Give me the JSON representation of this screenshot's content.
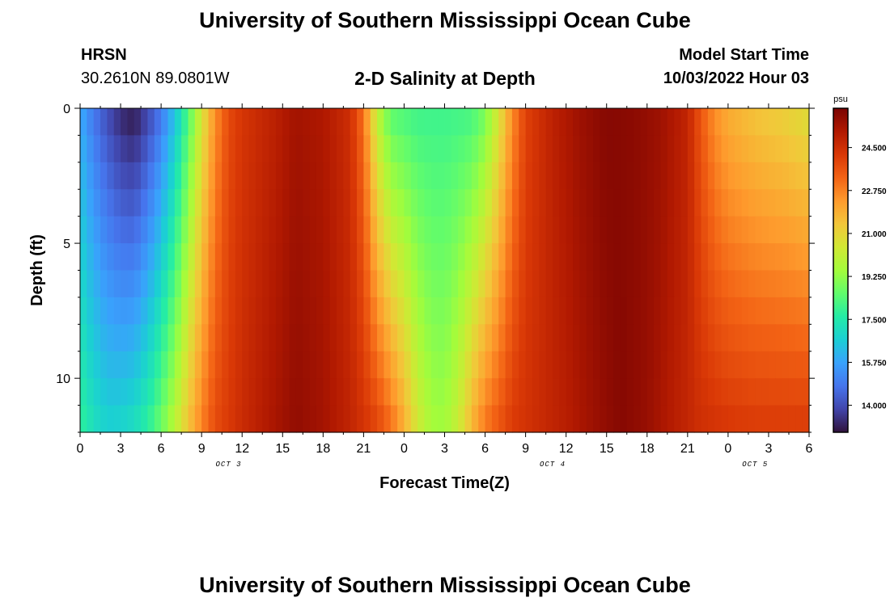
{
  "header": {
    "title": "University of Southern Mississippi Ocean Cube",
    "station": "HRSN",
    "coords": "30.2610N  89.0801W",
    "plot_title": "2-D Salinity at Depth",
    "start_label": "Model Start Time",
    "start_value": "10/03/2022 Hour 03"
  },
  "footer": {
    "title": "University of Southern Mississippi Ocean Cube"
  },
  "colors": {
    "colormap": [
      "#30123b",
      "#4145ab",
      "#4675ed",
      "#39a2fc",
      "#1bcfd4",
      "#24eca6",
      "#61fc6c",
      "#a4fc3b",
      "#d1e834",
      "#f3c63a",
      "#fe9b2d",
      "#f36315",
      "#d93806",
      "#b11901",
      "#7a0403"
    ]
  },
  "chart_data": {
    "type": "heatmap",
    "title": "2-D Salinity at Depth",
    "xlabel": "Forecast Time(Z)",
    "ylabel": "Depth (ft)",
    "x_ticks": [
      "0",
      "3",
      "6",
      "9",
      "12",
      "15",
      "18",
      "21",
      "0",
      "3",
      "6",
      "9",
      "12",
      "15",
      "18",
      "21",
      "0",
      "3",
      "6"
    ],
    "day_labels": [
      {
        "label": "OCT 3",
        "hour": 11
      },
      {
        "label": "OCT 4",
        "hour": 35
      },
      {
        "label": "OCT 5",
        "hour": 50
      }
    ],
    "x_range_hours": [
      0,
      54
    ],
    "y_ticks": [
      0,
      5,
      10
    ],
    "y_range_ft": [
      0,
      12
    ],
    "colorbar": {
      "unit": "psu",
      "ticks": [
        14.0,
        15.75,
        17.5,
        19.25,
        21.0,
        22.75,
        24.5
      ],
      "tick_labels": [
        "14.000",
        "15.750",
        "17.500",
        "19.250",
        "21.000",
        "22.750",
        "24.500"
      ],
      "range": [
        12.9,
        26.1
      ]
    },
    "surface_salinity_psu": [
      [
        0,
        15.9
      ],
      [
        1,
        14.8
      ],
      [
        2,
        14.0
      ],
      [
        3,
        13.3
      ],
      [
        4,
        13.0
      ],
      [
        5,
        13.8
      ],
      [
        6,
        14.8
      ],
      [
        7,
        16.3
      ],
      [
        8,
        18.2
      ],
      [
        9,
        20.5
      ],
      [
        10,
        22.5
      ],
      [
        11,
        23.8
      ],
      [
        12,
        24.3
      ],
      [
        14,
        24.8
      ],
      [
        16,
        25.4
      ],
      [
        18,
        25.2
      ],
      [
        20,
        24.5
      ],
      [
        21,
        23.0
      ],
      [
        22,
        20.0
      ],
      [
        23,
        18.4
      ],
      [
        25,
        18.0
      ],
      [
        27,
        18.0
      ],
      [
        29,
        18.1
      ],
      [
        30,
        18.8
      ],
      [
        31,
        20.5
      ],
      [
        32,
        22.5
      ],
      [
        33,
        24.0
      ],
      [
        35,
        24.9
      ],
      [
        37,
        25.5
      ],
      [
        39,
        25.9
      ],
      [
        41,
        25.8
      ],
      [
        43,
        25.5
      ],
      [
        45,
        24.8
      ],
      [
        46,
        23.5
      ],
      [
        47,
        22.5
      ],
      [
        48,
        21.9
      ],
      [
        50,
        21.4
      ],
      [
        52,
        21.1
      ],
      [
        54,
        20.7
      ]
    ],
    "bottom_salinity_psu": [
      [
        0,
        17.9
      ],
      [
        1,
        17.2
      ],
      [
        2,
        16.8
      ],
      [
        3,
        16.9
      ],
      [
        4,
        17.2
      ],
      [
        5,
        17.8
      ],
      [
        6,
        18.8
      ],
      [
        7,
        20.0
      ],
      [
        8,
        21.5
      ],
      [
        9,
        22.8
      ],
      [
        10,
        23.8
      ],
      [
        12,
        24.6
      ],
      [
        14,
        25.2
      ],
      [
        16,
        25.7
      ],
      [
        18,
        25.4
      ],
      [
        20,
        24.8
      ],
      [
        22,
        24.0
      ],
      [
        23,
        23.2
      ],
      [
        24,
        22.0
      ],
      [
        25,
        20.5
      ],
      [
        26,
        19.6
      ],
      [
        27,
        19.5
      ],
      [
        28,
        20.3
      ],
      [
        29,
        21.8
      ],
      [
        30,
        23.0
      ],
      [
        32,
        24.2
      ],
      [
        34,
        24.6
      ],
      [
        36,
        25.0
      ],
      [
        38,
        25.5
      ],
      [
        40,
        25.9
      ],
      [
        42,
        25.6
      ],
      [
        44,
        25.0
      ],
      [
        46,
        24.5
      ],
      [
        48,
        24.3
      ],
      [
        50,
        24.2
      ],
      [
        52,
        24.2
      ],
      [
        54,
        24.2
      ]
    ]
  }
}
